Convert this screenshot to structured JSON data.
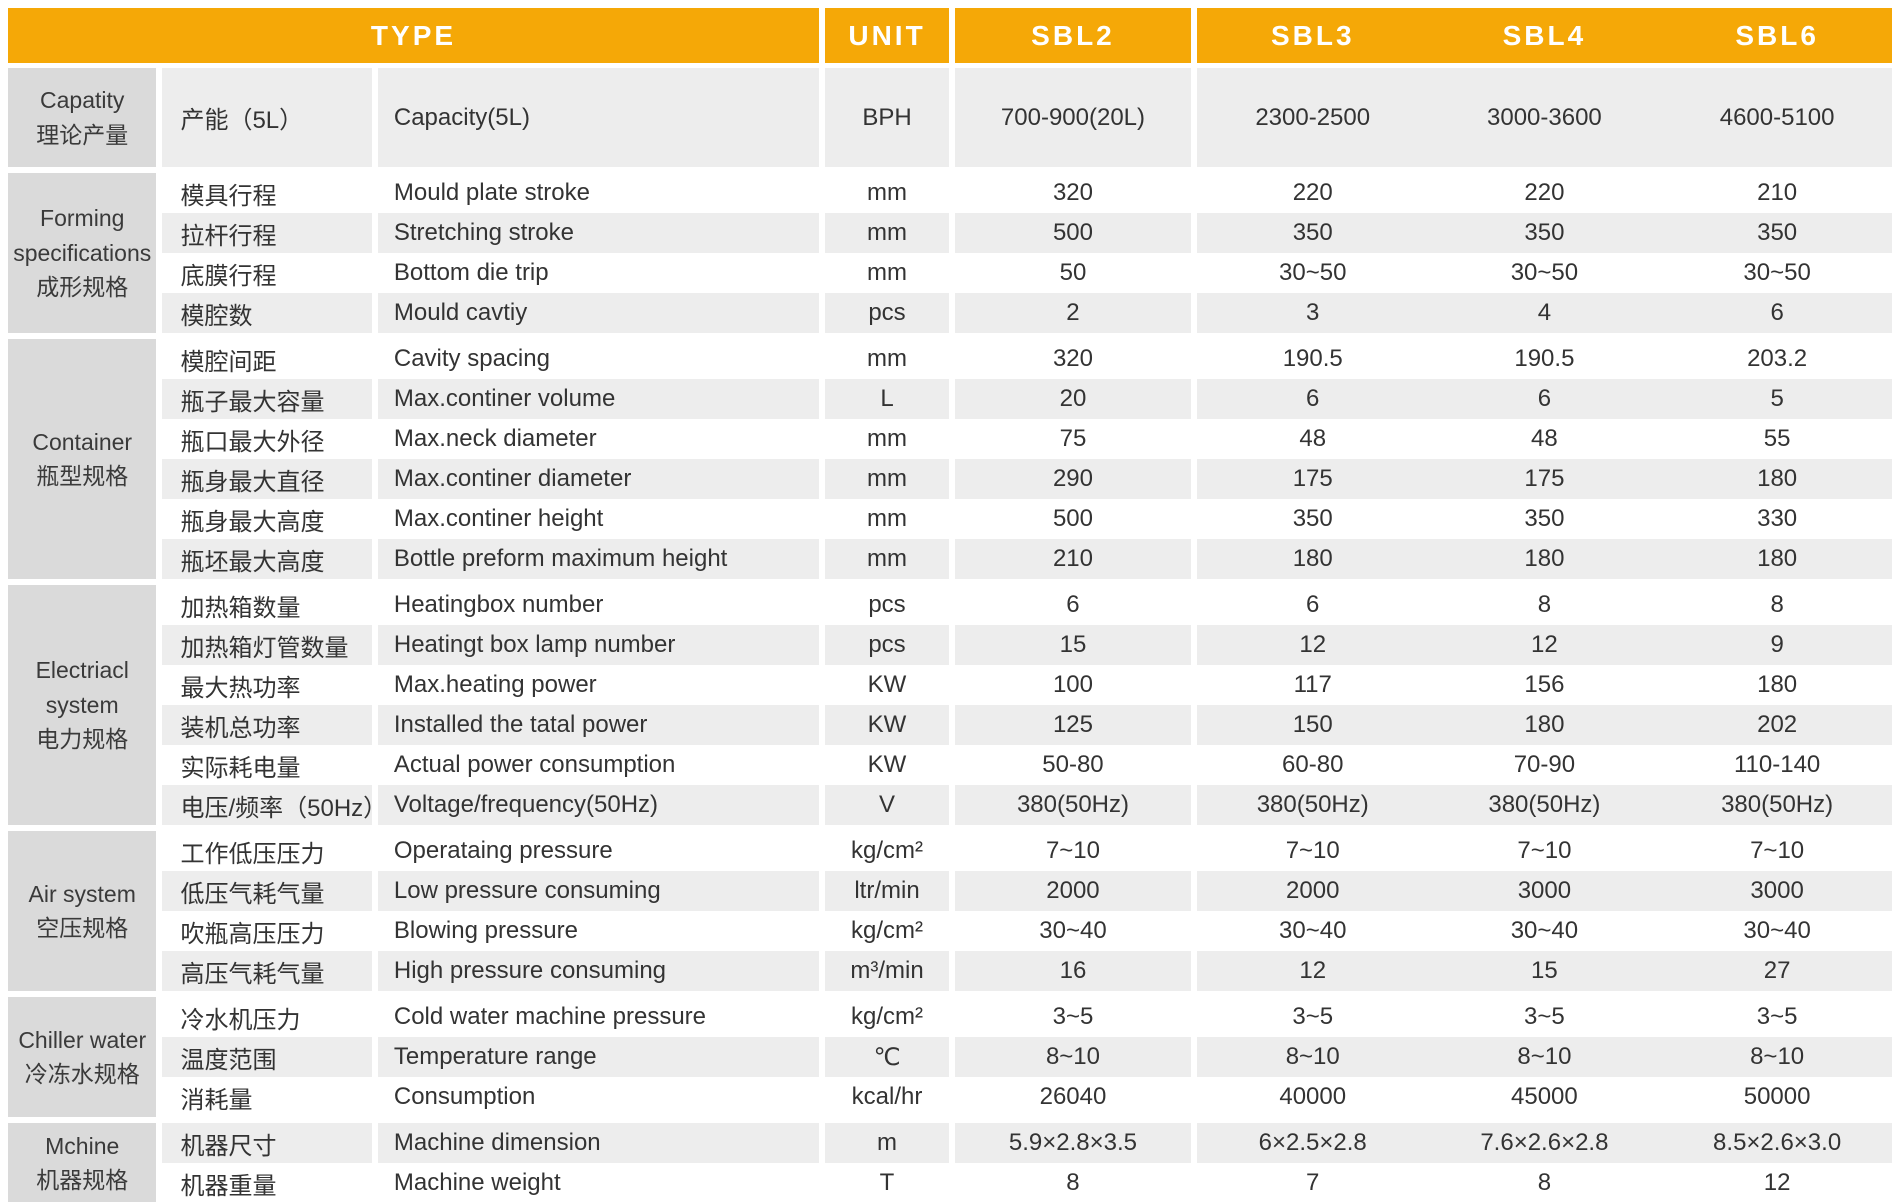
{
  "table": {
    "header": {
      "type": "TYPE",
      "unit": "UNIT",
      "models": [
        "SBL2",
        "SBL3",
        "SBL4",
        "SBL6"
      ]
    },
    "groups": [
      {
        "label_en": "Capatity",
        "label_zh": "理论产量",
        "rows": [
          {
            "zh": "产能（5L）",
            "en": "Capacity(5L)",
            "unit": "BPH",
            "values": [
              "700-900(20L)",
              "2300-2500",
              "3000-3600",
              "4600-5100"
            ]
          }
        ]
      },
      {
        "label_en": "Forming specifications",
        "label_zh": "成形规格",
        "rows": [
          {
            "zh": "模具行程",
            "en": "Mould plate stroke",
            "unit": "mm",
            "values": [
              "320",
              "220",
              "220",
              "210"
            ]
          },
          {
            "zh": "拉杆行程",
            "en": "Stretching stroke",
            "unit": "mm",
            "values": [
              "500",
              "350",
              "350",
              "350"
            ]
          },
          {
            "zh": "底膜行程",
            "en": "Bottom die trip",
            "unit": "mm",
            "values": [
              "50",
              "30~50",
              "30~50",
              "30~50"
            ]
          },
          {
            "zh": "模腔数",
            "en": "Mould cavtiy",
            "unit": "pcs",
            "values": [
              "2",
              "3",
              "4",
              "6"
            ]
          }
        ]
      },
      {
        "label_en": "Container",
        "label_zh": "瓶型规格",
        "rows": [
          {
            "zh": "模腔间距",
            "en": "Cavity spacing",
            "unit": "mm",
            "values": [
              "320",
              "190.5",
              "190.5",
              "203.2"
            ]
          },
          {
            "zh": "瓶子最大容量",
            "en": "Max.continer volume",
            "unit": "L",
            "values": [
              "20",
              "6",
              "6",
              "5"
            ]
          },
          {
            "zh": "瓶口最大外径",
            "en": "Max.neck diameter",
            "unit": "mm",
            "values": [
              "75",
              "48",
              "48",
              "55"
            ]
          },
          {
            "zh": "瓶身最大直径",
            "en": "Max.continer diameter",
            "unit": "mm",
            "values": [
              "290",
              "175",
              "175",
              "180"
            ]
          },
          {
            "zh": "瓶身最大高度",
            "en": "Max.continer height",
            "unit": "mm",
            "values": [
              "500",
              "350",
              "350",
              "330"
            ]
          },
          {
            "zh": "瓶坯最大高度",
            "en": "Bottle preform maximum height",
            "unit": "mm",
            "values": [
              "210",
              "180",
              "180",
              "180"
            ]
          }
        ]
      },
      {
        "label_en": "Electriacl system",
        "label_zh": "电力规格",
        "rows": [
          {
            "zh": "加热箱数量",
            "en": "Heatingbox number",
            "unit": "pcs",
            "values": [
              "6",
              "6",
              "8",
              "8"
            ]
          },
          {
            "zh": "加热箱灯管数量",
            "en": "Heatingt box lamp number",
            "unit": "pcs",
            "values": [
              "15",
              "12",
              "12",
              "9"
            ]
          },
          {
            "zh": "最大热功率",
            "en": "Max.heating power",
            "unit": "KW",
            "values": [
              "100",
              "117",
              "156",
              "180"
            ]
          },
          {
            "zh": "装机总功率",
            "en": "Installed the tatal power",
            "unit": "KW",
            "values": [
              "125",
              "150",
              "180",
              "202"
            ]
          },
          {
            "zh": "实际耗电量",
            "en": "Actual power consumption",
            "unit": "KW",
            "values": [
              "50-80",
              "60-80",
              "70-90",
              "110-140"
            ]
          },
          {
            "zh": "电压/频率（50Hz）",
            "en": "Voltage/frequency(50Hz)",
            "unit": "V",
            "values": [
              "380(50Hz)",
              "380(50Hz)",
              "380(50Hz)",
              "380(50Hz)"
            ]
          }
        ]
      },
      {
        "label_en": "Air system",
        "label_zh": "空压规格",
        "rows": [
          {
            "zh": "工作低压压力",
            "en": "Operataing pressure",
            "unit": "kg/cm²",
            "values": [
              "7~10",
              "7~10",
              "7~10",
              "7~10"
            ]
          },
          {
            "zh": "低压气耗气量",
            "en": "Low pressure consuming",
            "unit": "ltr/min",
            "values": [
              "2000",
              "2000",
              "3000",
              "3000"
            ]
          },
          {
            "zh": "吹瓶高压压力",
            "en": "Blowing pressure",
            "unit": "kg/cm²",
            "values": [
              "30~40",
              "30~40",
              "30~40",
              "30~40"
            ]
          },
          {
            "zh": "高压气耗气量",
            "en": "High pressure consuming",
            "unit": "m³/min",
            "values": [
              "16",
              "12",
              "15",
              "27"
            ]
          }
        ]
      },
      {
        "label_en": "Chiller water",
        "label_zh": "冷冻水规格",
        "rows": [
          {
            "zh": "冷水机压力",
            "en": "Cold water machine pressure",
            "unit": "kg/cm²",
            "values": [
              "3~5",
              "3~5",
              "3~5",
              "3~5"
            ]
          },
          {
            "zh": "温度范围",
            "en": "Temperature range",
            "unit": "℃",
            "values": [
              "8~10",
              "8~10",
              "8~10",
              "8~10"
            ]
          },
          {
            "zh": "消耗量",
            "en": "Consumption",
            "unit": "kcal/hr",
            "values": [
              "26040",
              "40000",
              "45000",
              "50000"
            ]
          }
        ]
      },
      {
        "label_en": "Mchine",
        "label_zh": "机器规格",
        "rows": [
          {
            "zh": "机器尺寸",
            "en": "Machine dimension",
            "unit": "m",
            "values": [
              "5.9×2.8×3.5",
              "6×2.5×2.8",
              "7.6×2.6×2.8",
              "8.5×2.6×3.0"
            ]
          },
          {
            "zh": "机器重量",
            "en": "Machine weight",
            "unit": "T",
            "values": [
              "8",
              "7",
              "8",
              "12"
            ]
          }
        ]
      }
    ]
  },
  "colors": {
    "header_bg": "#F5A807",
    "header_text": "#FFFFFF",
    "group_bg": "#DADADA",
    "row_shade": "#EDEDED",
    "row_plain": "#FFFFFF",
    "text": "#333333"
  }
}
